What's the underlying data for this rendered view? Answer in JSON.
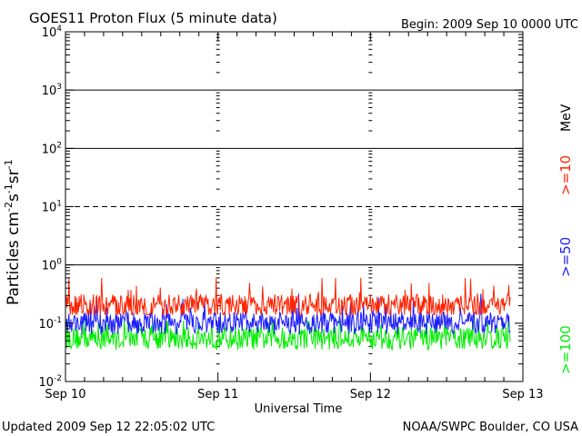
{
  "chart_data": {
    "type": "line",
    "title": "GOES11 Proton Flux (5 minute data)",
    "begin": "Begin: 2009 Sep 10 0000 UTC",
    "updated": "Updated 2009 Sep 12 22:05:02 UTC",
    "credit": "NOAA/SWPC Boulder, CO USA",
    "xlabel": "Universal Time",
    "ylabel_parts": [
      {
        "t": "Particles cm",
        "sup": false
      },
      {
        "t": "-2",
        "sup": true
      },
      {
        "t": "s",
        "sup": false
      },
      {
        "t": "-1",
        "sup": true
      },
      {
        "t": "sr",
        "sup": false
      },
      {
        "t": "-1",
        "sup": true
      }
    ],
    "unit": "MeV",
    "y_scale": "log",
    "ylim": [
      0.01,
      10000
    ],
    "y_ticks": [
      {
        "base": "10",
        "exp": "-2",
        "value": 0.01
      },
      {
        "base": "10",
        "exp": "-1",
        "value": 0.1
      },
      {
        "base": "10",
        "exp": "0",
        "value": 1
      },
      {
        "base": "10",
        "exp": "1",
        "value": 10
      },
      {
        "base": "10",
        "exp": "2",
        "value": 100
      },
      {
        "base": "10",
        "exp": "3",
        "value": 1000
      },
      {
        "base": "10",
        "exp": "4",
        "value": 10000
      }
    ],
    "xlim": [
      "2009-09-10 00:00",
      "2009-09-13 00:00"
    ],
    "x_ticks": [
      "Sep 10",
      "Sep 11",
      "Sep 12",
      "Sep 13"
    ],
    "h_lines": [
      {
        "value": 1000,
        "style": "solid"
      },
      {
        "value": 100,
        "style": "solid"
      },
      {
        "value": 10,
        "style": "dashed"
      },
      {
        "value": 1,
        "style": "solid"
      }
    ],
    "data_end": "2009-09-12 22:05",
    "series": [
      {
        "name": ">=10",
        "color": "#ff2200",
        "base": 0.2,
        "min": 0.14,
        "max": 0.6
      },
      {
        "name": ">=50",
        "color": "#1e1eff",
        "base": 0.1,
        "min": 0.06,
        "max": 0.32
      },
      {
        "name": ">=100",
        "color": "#00ee00",
        "base": 0.055,
        "min": 0.028,
        "max": 0.11
      }
    ]
  }
}
